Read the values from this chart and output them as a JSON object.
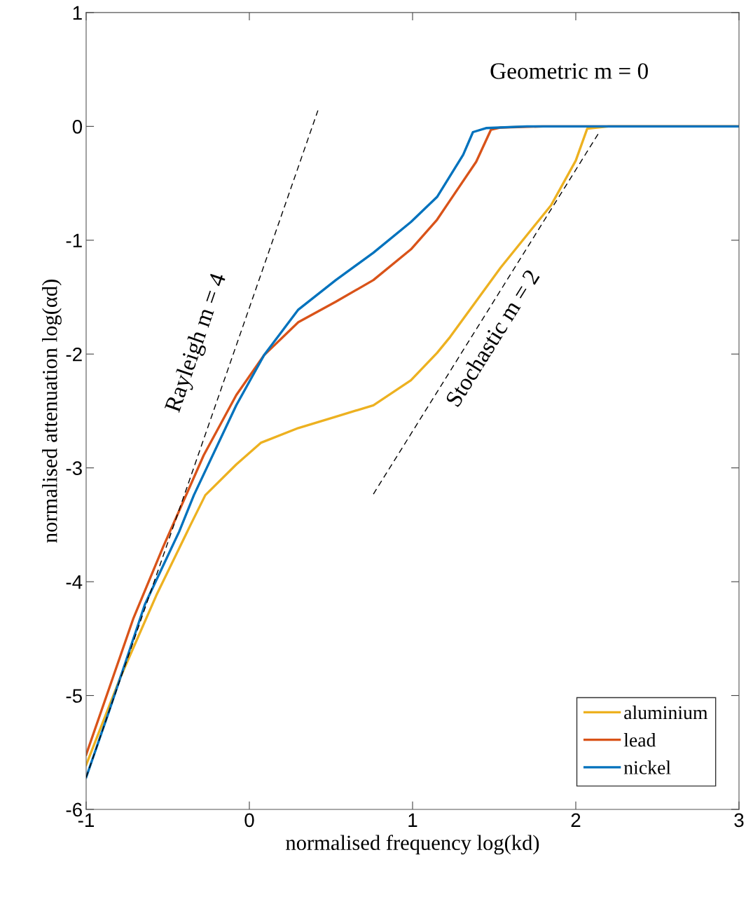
{
  "chart_data": {
    "type": "line",
    "xlabel": "normalised frequency log(kd)",
    "ylabel": "normalised attenuation log(αd)",
    "xlim": [
      -1,
      3
    ],
    "ylim": [
      -6,
      1
    ],
    "xticks": [
      -1,
      0,
      1,
      2,
      3
    ],
    "yticks": [
      -6,
      -5,
      -4,
      -3,
      -2,
      -1,
      0,
      1
    ],
    "grid": false,
    "legend": "bottom right",
    "line_style": "solid",
    "marker": "none",
    "series": [
      {
        "name": "aluminium",
        "color": "#edb120",
        "x": [
          -1,
          -0.79,
          -0.57,
          -0.36,
          -0.27,
          -0.08,
          0.07,
          0.3,
          0.53,
          0.76,
          0.99,
          1.15,
          1.23,
          1.54,
          1.85,
          2.0,
          2.07,
          2.2,
          2.5,
          3
        ],
        "values": [
          -5.61,
          -4.84,
          -4.12,
          -3.5,
          -3.24,
          -2.97,
          -2.78,
          -2.65,
          -2.55,
          -2.45,
          -2.23,
          -1.99,
          -1.85,
          -1.24,
          -0.69,
          -0.3,
          -0.02,
          0,
          0,
          0
        ]
      },
      {
        "name": "lead",
        "color": "#d95319",
        "x": [
          -1,
          -0.71,
          -0.53,
          -0.36,
          -0.28,
          -0.08,
          0.09,
          0.3,
          0.53,
          0.76,
          0.99,
          1.15,
          1.23,
          1.39,
          1.48,
          1.54,
          1.8,
          2.5,
          3
        ],
        "values": [
          -5.52,
          -4.32,
          -3.7,
          -3.15,
          -2.89,
          -2.36,
          -2.01,
          -1.72,
          -1.54,
          -1.35,
          -1.08,
          -0.82,
          -0.65,
          -0.31,
          -0.03,
          -0.01,
          0,
          0,
          0
        ]
      },
      {
        "name": "nickel",
        "color": "#0072bd",
        "x": [
          -1,
          -0.86,
          -0.64,
          -0.43,
          -0.34,
          -0.08,
          0.09,
          0.3,
          0.53,
          0.76,
          0.99,
          1.15,
          1.31,
          1.37,
          1.45,
          1.7,
          2.5,
          3
        ],
        "values": [
          -5.72,
          -5.14,
          -4.2,
          -3.56,
          -3.24,
          -2.45,
          -2.01,
          -1.61,
          -1.35,
          -1.11,
          -0.84,
          -0.62,
          -0.25,
          -0.05,
          -0.015,
          0,
          0,
          0
        ]
      },
      {
        "color": "#000000",
        "line_style": "dashed",
        "x": [
          -1,
          0.42
        ],
        "values": [
          -5.72,
          0.14
        ]
      },
      {
        "color": "#000000",
        "line_style": "dashed",
        "x": [
          0.76,
          2.14
        ],
        "values": [
          -3.23,
          -0.06
        ]
      }
    ],
    "annotations": [
      "Geometric m = 0",
      "Rayleigh m = 4",
      "Stochastic m = 2"
    ]
  }
}
